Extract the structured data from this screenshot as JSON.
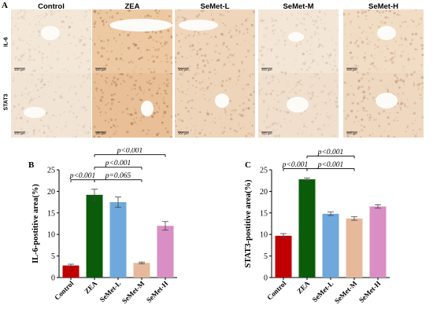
{
  "figure": {
    "panel_a": "A",
    "panel_b": "B",
    "panel_c": "C",
    "columns": [
      "Control",
      "ZEA",
      "SeMet-L",
      "SeMet-M",
      "SeMet-H"
    ],
    "rows": [
      "IL-6",
      "STAT3"
    ],
    "scale_bar": "100 μm"
  },
  "chart_data": [
    {
      "type": "bar",
      "ylabel": "IL-6-postitive area(%)",
      "categories": [
        "Control",
        "ZEA",
        "SeMet-L",
        "SeMet-M",
        "SeMet-H"
      ],
      "values": [
        2.8,
        19.2,
        17.5,
        3.4,
        12.0
      ],
      "errors": [
        0.3,
        1.3,
        1.2,
        0.2,
        1.0
      ],
      "colors": [
        "#c00000",
        "#0a5c0a",
        "#6fa8dc",
        "#e6b89c",
        "#d98ec4"
      ],
      "ylim": [
        0,
        25
      ],
      "yticks": [
        0,
        5,
        10,
        15,
        20,
        25
      ],
      "significance": [
        {
          "from": 0,
          "to": 1,
          "label": "p<0.001",
          "level": 0
        },
        {
          "from": 1,
          "to": 3,
          "label": "p=0.065",
          "level": 0
        },
        {
          "from": 1,
          "to": 3,
          "label": "p<0.001",
          "level": 1
        },
        {
          "from": 1,
          "to": 4,
          "label": "p<0.001",
          "level": 2
        }
      ]
    },
    {
      "type": "bar",
      "ylabel": "STAT3-postitive area(%)",
      "categories": [
        "Control",
        "ZEA",
        "SeMet-L",
        "SeMet-M",
        "SeMet-H"
      ],
      "values": [
        9.7,
        22.8,
        14.8,
        13.7,
        16.5
      ],
      "errors": [
        0.5,
        0.3,
        0.4,
        0.4,
        0.4
      ],
      "colors": [
        "#c00000",
        "#0a5c0a",
        "#6fa8dc",
        "#e6b89c",
        "#d98ec4"
      ],
      "ylim": [
        0,
        25
      ],
      "yticks": [
        0,
        5,
        10,
        15,
        20,
        25
      ],
      "significance": [
        {
          "from": 0,
          "to": 1,
          "label": "p<0.001",
          "level": 0
        },
        {
          "from": 1,
          "to": 3,
          "label": "p<0.001",
          "level": 0
        },
        {
          "from": 1,
          "to": 3,
          "label": "p<0.001",
          "level": 1
        },
        {
          "from": 1,
          "to": 4,
          "label": "p<0.001",
          "level": 2
        }
      ]
    }
  ]
}
